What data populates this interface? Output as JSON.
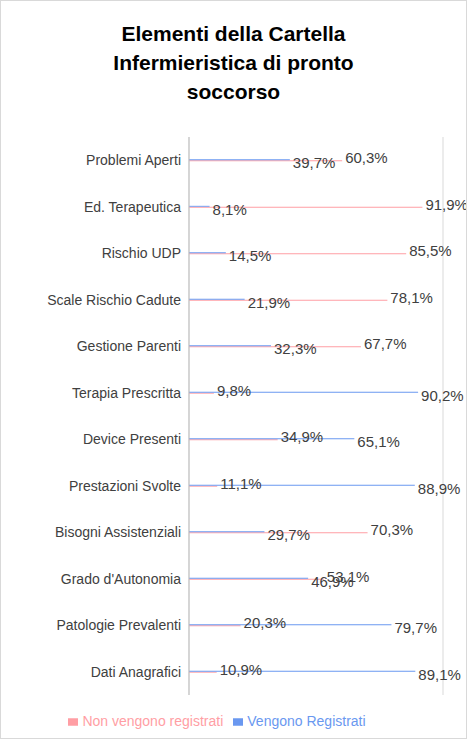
{
  "chart_data": {
    "type": "bar",
    "orientation": "horizontal",
    "title": "Elementi della Cartella Infermieristica di pronto soccorso",
    "categories": [
      "Problemi Aperti",
      "Ed. Terapeutica",
      "Rischio UDP",
      "Scale Rischio Cadute",
      "Gestione Parenti",
      "Terapia Prescritta",
      "Device Presenti",
      "Prestazioni Svolte",
      "Bisogni Assistenziali",
      "Grado d'Autonomia",
      "Patologie Prevalenti",
      "Dati Anagrafici"
    ],
    "series": [
      {
        "name": "Non vengono registrati",
        "color": "#ff9ea4",
        "values": [
          60.3,
          91.9,
          85.5,
          78.1,
          67.7,
          9.8,
          34.9,
          11.1,
          70.3,
          53.1,
          20.3,
          10.9
        ],
        "value_labels": [
          "60,3%",
          "91,9%",
          "85,5%",
          "78,1%",
          "67,7%",
          "9,8%",
          "34,9%",
          "11,1%",
          "70,3%",
          "53,1%",
          "20,3%",
          "10,9%"
        ]
      },
      {
        "name": "Vengono Registrati",
        "color": "#6a98f0",
        "values": [
          39.7,
          8.1,
          14.5,
          21.9,
          32.3,
          90.2,
          65.1,
          88.9,
          29.7,
          46.9,
          79.7,
          89.1
        ],
        "value_labels": [
          "39,7%",
          "8,1%",
          "14,5%",
          "21,9%",
          "32,3%",
          "90,2%",
          "65,1%",
          "88,9%",
          "29,7%",
          "46,9%",
          "79,7%",
          "89,1%"
        ]
      }
    ],
    "xlim": [
      0,
      100
    ],
    "xticks": [
      0,
      20,
      40,
      60,
      80,
      100
    ],
    "grid": true,
    "data_labels": true,
    "tick_labels": "y",
    "legend": "bottom"
  }
}
